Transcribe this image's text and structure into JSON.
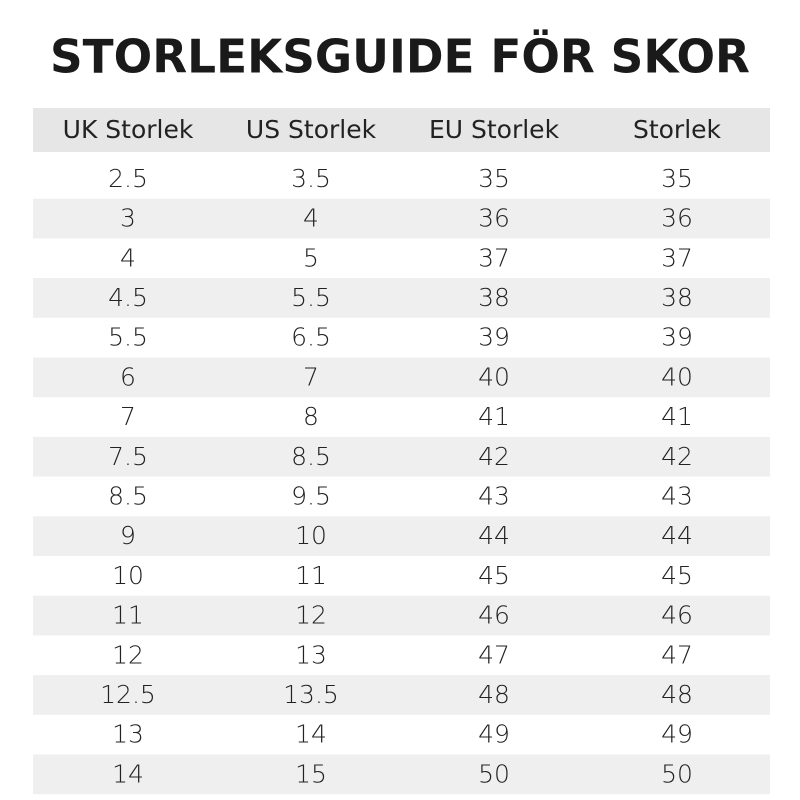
{
  "header": {
    "title": "STORLEKSGUIDE FÖR SKOR"
  },
  "table": {
    "headers": [
      "UK Storlek",
      "US Storlek",
      "EU Storlek",
      "Storlek"
    ],
    "rows": [
      [
        "2.5",
        "3.5",
        "35",
        "35"
      ],
      [
        "3",
        "4",
        "36",
        "36"
      ],
      [
        "4",
        "5",
        "37",
        "37"
      ],
      [
        "4.5",
        "5.5",
        "38",
        "38"
      ],
      [
        "5.5",
        "6.5",
        "39",
        "39"
      ],
      [
        "6",
        "7",
        "40",
        "40"
      ],
      [
        "7",
        "8",
        "41",
        "41"
      ],
      [
        "7.5",
        "8.5",
        "42",
        "42"
      ],
      [
        "8.5",
        "9.5",
        "43",
        "43"
      ],
      [
        "9",
        "10",
        "44",
        "44"
      ],
      [
        "10",
        "11",
        "45",
        "45"
      ],
      [
        "11",
        "12",
        "46",
        "46"
      ],
      [
        "12",
        "13",
        "47",
        "47"
      ],
      [
        "12.5",
        "13.5",
        "48",
        "48"
      ],
      [
        "13",
        "14",
        "49",
        "49"
      ],
      [
        "14",
        "15",
        "50",
        "50"
      ]
    ]
  }
}
